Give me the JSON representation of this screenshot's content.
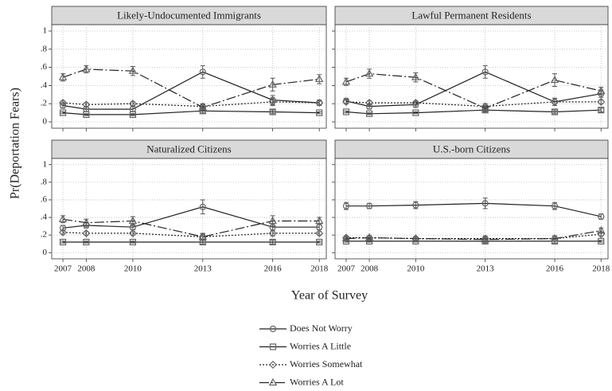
{
  "figure": {
    "ylabel": "Pr(Deportation Fears)",
    "xlabel": "Year of Survey"
  },
  "chart_data": [
    {
      "type": "line",
      "title": "Likely-Undocumented Immigrants",
      "x": [
        2007,
        2008,
        2010,
        2013,
        2016,
        2018
      ],
      "xlim": [
        2006.52,
        2018.3
      ],
      "xticks": [
        2007,
        2008,
        2010,
        2013,
        2016,
        2018
      ],
      "ylim": [
        -0.07,
        1.07
      ],
      "yticks": [
        0,
        {
          "value": 0.2,
          "label": ".2"
        },
        {
          "value": 0.4,
          "label": ".4"
        },
        {
          "value": 0.6,
          "label": ".6"
        },
        {
          "value": 0.8,
          "label": ".8"
        },
        1
      ],
      "grid": true,
      "series": [
        {
          "name": "Does Not Worry",
          "color": "#222",
          "marker": "circle",
          "dash": "solid",
          "values": [
            0.18,
            0.14,
            0.14,
            0.55,
            0.24,
            0.21
          ],
          "errors": [
            0.03,
            0.03,
            0.03,
            0.07,
            0.05,
            0.03
          ]
        },
        {
          "name": "Worries A Little",
          "color": "#222",
          "marker": "square",
          "dash": "solid",
          "values": [
            0.1,
            0.08,
            0.08,
            0.12,
            0.11,
            0.1
          ],
          "errors": [
            0.01,
            0.01,
            0.01,
            0.02,
            0.02,
            0.01
          ]
        },
        {
          "name": "Worries Somewhat",
          "color": "#222",
          "marker": "diamond",
          "dash": "dotted",
          "values": [
            0.21,
            0.19,
            0.2,
            0.17,
            0.22,
            0.21
          ],
          "errors": [
            0.02,
            0.02,
            0.02,
            0.03,
            0.04,
            0.02
          ]
        },
        {
          "name": "Worries A Lot",
          "color": "#222",
          "marker": "triangle",
          "dash": "dashdot",
          "values": [
            0.49,
            0.58,
            0.56,
            0.16,
            0.41,
            0.47
          ],
          "errors": [
            0.04,
            0.04,
            0.05,
            0.03,
            0.07,
            0.05
          ]
        }
      ]
    },
    {
      "type": "line",
      "title": "Lawful Permanent Residents",
      "x": [
        2007,
        2008,
        2010,
        2013,
        2016,
        2018
      ],
      "xlim": [
        2006.52,
        2018.3
      ],
      "xticks": [
        2007,
        2008,
        2010,
        2013,
        2016,
        2018
      ],
      "ylim": [
        -0.07,
        1.07
      ],
      "yticks": [
        0,
        {
          "value": 0.2,
          "label": ".2"
        },
        {
          "value": 0.4,
          "label": ".4"
        },
        {
          "value": 0.6,
          "label": ".6"
        },
        {
          "value": 0.8,
          "label": ".8"
        },
        1
      ],
      "grid": true,
      "series": [
        {
          "name": "Does Not Worry",
          "color": "#222",
          "marker": "circle",
          "dash": "solid",
          "values": [
            0.23,
            0.17,
            0.19,
            0.55,
            0.22,
            0.31
          ],
          "errors": [
            0.03,
            0.03,
            0.03,
            0.07,
            0.04,
            0.04
          ]
        },
        {
          "name": "Worries A Little",
          "color": "#222",
          "marker": "square",
          "dash": "solid",
          "values": [
            0.11,
            0.09,
            0.1,
            0.13,
            0.11,
            0.13
          ],
          "errors": [
            0.01,
            0.01,
            0.01,
            0.02,
            0.02,
            0.02
          ]
        },
        {
          "name": "Worries Somewhat",
          "color": "#222",
          "marker": "diamond",
          "dash": "dotted",
          "values": [
            0.22,
            0.21,
            0.21,
            0.17,
            0.22,
            0.22
          ],
          "errors": [
            0.02,
            0.02,
            0.02,
            0.03,
            0.04,
            0.02
          ]
        },
        {
          "name": "Worries A Lot",
          "color": "#222",
          "marker": "triangle",
          "dash": "dashdot",
          "values": [
            0.44,
            0.53,
            0.49,
            0.15,
            0.46,
            0.34
          ],
          "errors": [
            0.04,
            0.05,
            0.05,
            0.03,
            0.07,
            0.04
          ]
        }
      ]
    },
    {
      "type": "line",
      "title": "Naturalized Citizens",
      "x": [
        2007,
        2008,
        2010,
        2013,
        2016,
        2018
      ],
      "xlim": [
        2006.52,
        2018.3
      ],
      "xticks": [
        2007,
        2008,
        2010,
        2013,
        2016,
        2018
      ],
      "ylim": [
        -0.07,
        1.07
      ],
      "yticks": [
        0,
        {
          "value": 0.2,
          "label": ".2"
        },
        {
          "value": 0.4,
          "label": ".4"
        },
        {
          "value": 0.6,
          "label": ".6"
        },
        {
          "value": 0.8,
          "label": ".8"
        },
        1
      ],
      "grid": true,
      "series": [
        {
          "name": "Does Not Worry",
          "color": "#222",
          "marker": "circle",
          "dash": "solid",
          "values": [
            0.28,
            0.31,
            0.29,
            0.52,
            0.29,
            0.29
          ],
          "errors": [
            0.03,
            0.03,
            0.03,
            0.08,
            0.04,
            0.03
          ]
        },
        {
          "name": "Worries A Little",
          "color": "#222",
          "marker": "square",
          "dash": "solid",
          "values": [
            0.12,
            0.12,
            0.12,
            0.12,
            0.12,
            0.12
          ],
          "errors": [
            0.01,
            0.01,
            0.01,
            0.02,
            0.02,
            0.01
          ]
        },
        {
          "name": "Worries Somewhat",
          "color": "#222",
          "marker": "diamond",
          "dash": "dotted",
          "values": [
            0.23,
            0.22,
            0.22,
            0.18,
            0.22,
            0.22
          ],
          "errors": [
            0.02,
            0.02,
            0.02,
            0.03,
            0.03,
            0.02
          ]
        },
        {
          "name": "Worries A Lot",
          "color": "#222",
          "marker": "triangle",
          "dash": "dashdot",
          "values": [
            0.38,
            0.34,
            0.36,
            0.18,
            0.36,
            0.36
          ],
          "errors": [
            0.04,
            0.04,
            0.05,
            0.04,
            0.06,
            0.04
          ]
        }
      ]
    },
    {
      "type": "line",
      "title": "U.S.-born Citizens",
      "x": [
        2007,
        2008,
        2010,
        2013,
        2016,
        2018
      ],
      "xlim": [
        2006.52,
        2018.3
      ],
      "xticks": [
        2007,
        2008,
        2010,
        2013,
        2016,
        2018
      ],
      "ylim": [
        -0.07,
        1.07
      ],
      "yticks": [
        0,
        {
          "value": 0.2,
          "label": ".2"
        },
        {
          "value": 0.4,
          "label": ".4"
        },
        {
          "value": 0.6,
          "label": ".6"
        },
        {
          "value": 0.8,
          "label": ".8"
        },
        1
      ],
      "grid": true,
      "series": [
        {
          "name": "Does Not Worry",
          "color": "#222",
          "marker": "circle",
          "dash": "solid",
          "values": [
            0.53,
            0.53,
            0.54,
            0.56,
            0.53,
            0.41
          ],
          "errors": [
            0.04,
            0.03,
            0.04,
            0.06,
            0.04,
            0.03
          ]
        },
        {
          "name": "Worries A Little",
          "color": "#222",
          "marker": "square",
          "dash": "solid",
          "values": [
            0.13,
            0.13,
            0.13,
            0.13,
            0.13,
            0.13
          ],
          "errors": [
            0.01,
            0.01,
            0.01,
            0.02,
            0.02,
            0.01
          ]
        },
        {
          "name": "Worries Somewhat",
          "color": "#222",
          "marker": "diamond",
          "dash": "dotted",
          "values": [
            0.17,
            0.17,
            0.16,
            0.16,
            0.16,
            0.21
          ],
          "errors": [
            0.02,
            0.02,
            0.02,
            0.03,
            0.03,
            0.02
          ]
        },
        {
          "name": "Worries A Lot",
          "color": "#222",
          "marker": "triangle",
          "dash": "dashdot",
          "values": [
            0.16,
            0.17,
            0.16,
            0.15,
            0.16,
            0.25
          ],
          "errors": [
            0.02,
            0.02,
            0.02,
            0.03,
            0.03,
            0.03
          ]
        }
      ]
    }
  ]
}
